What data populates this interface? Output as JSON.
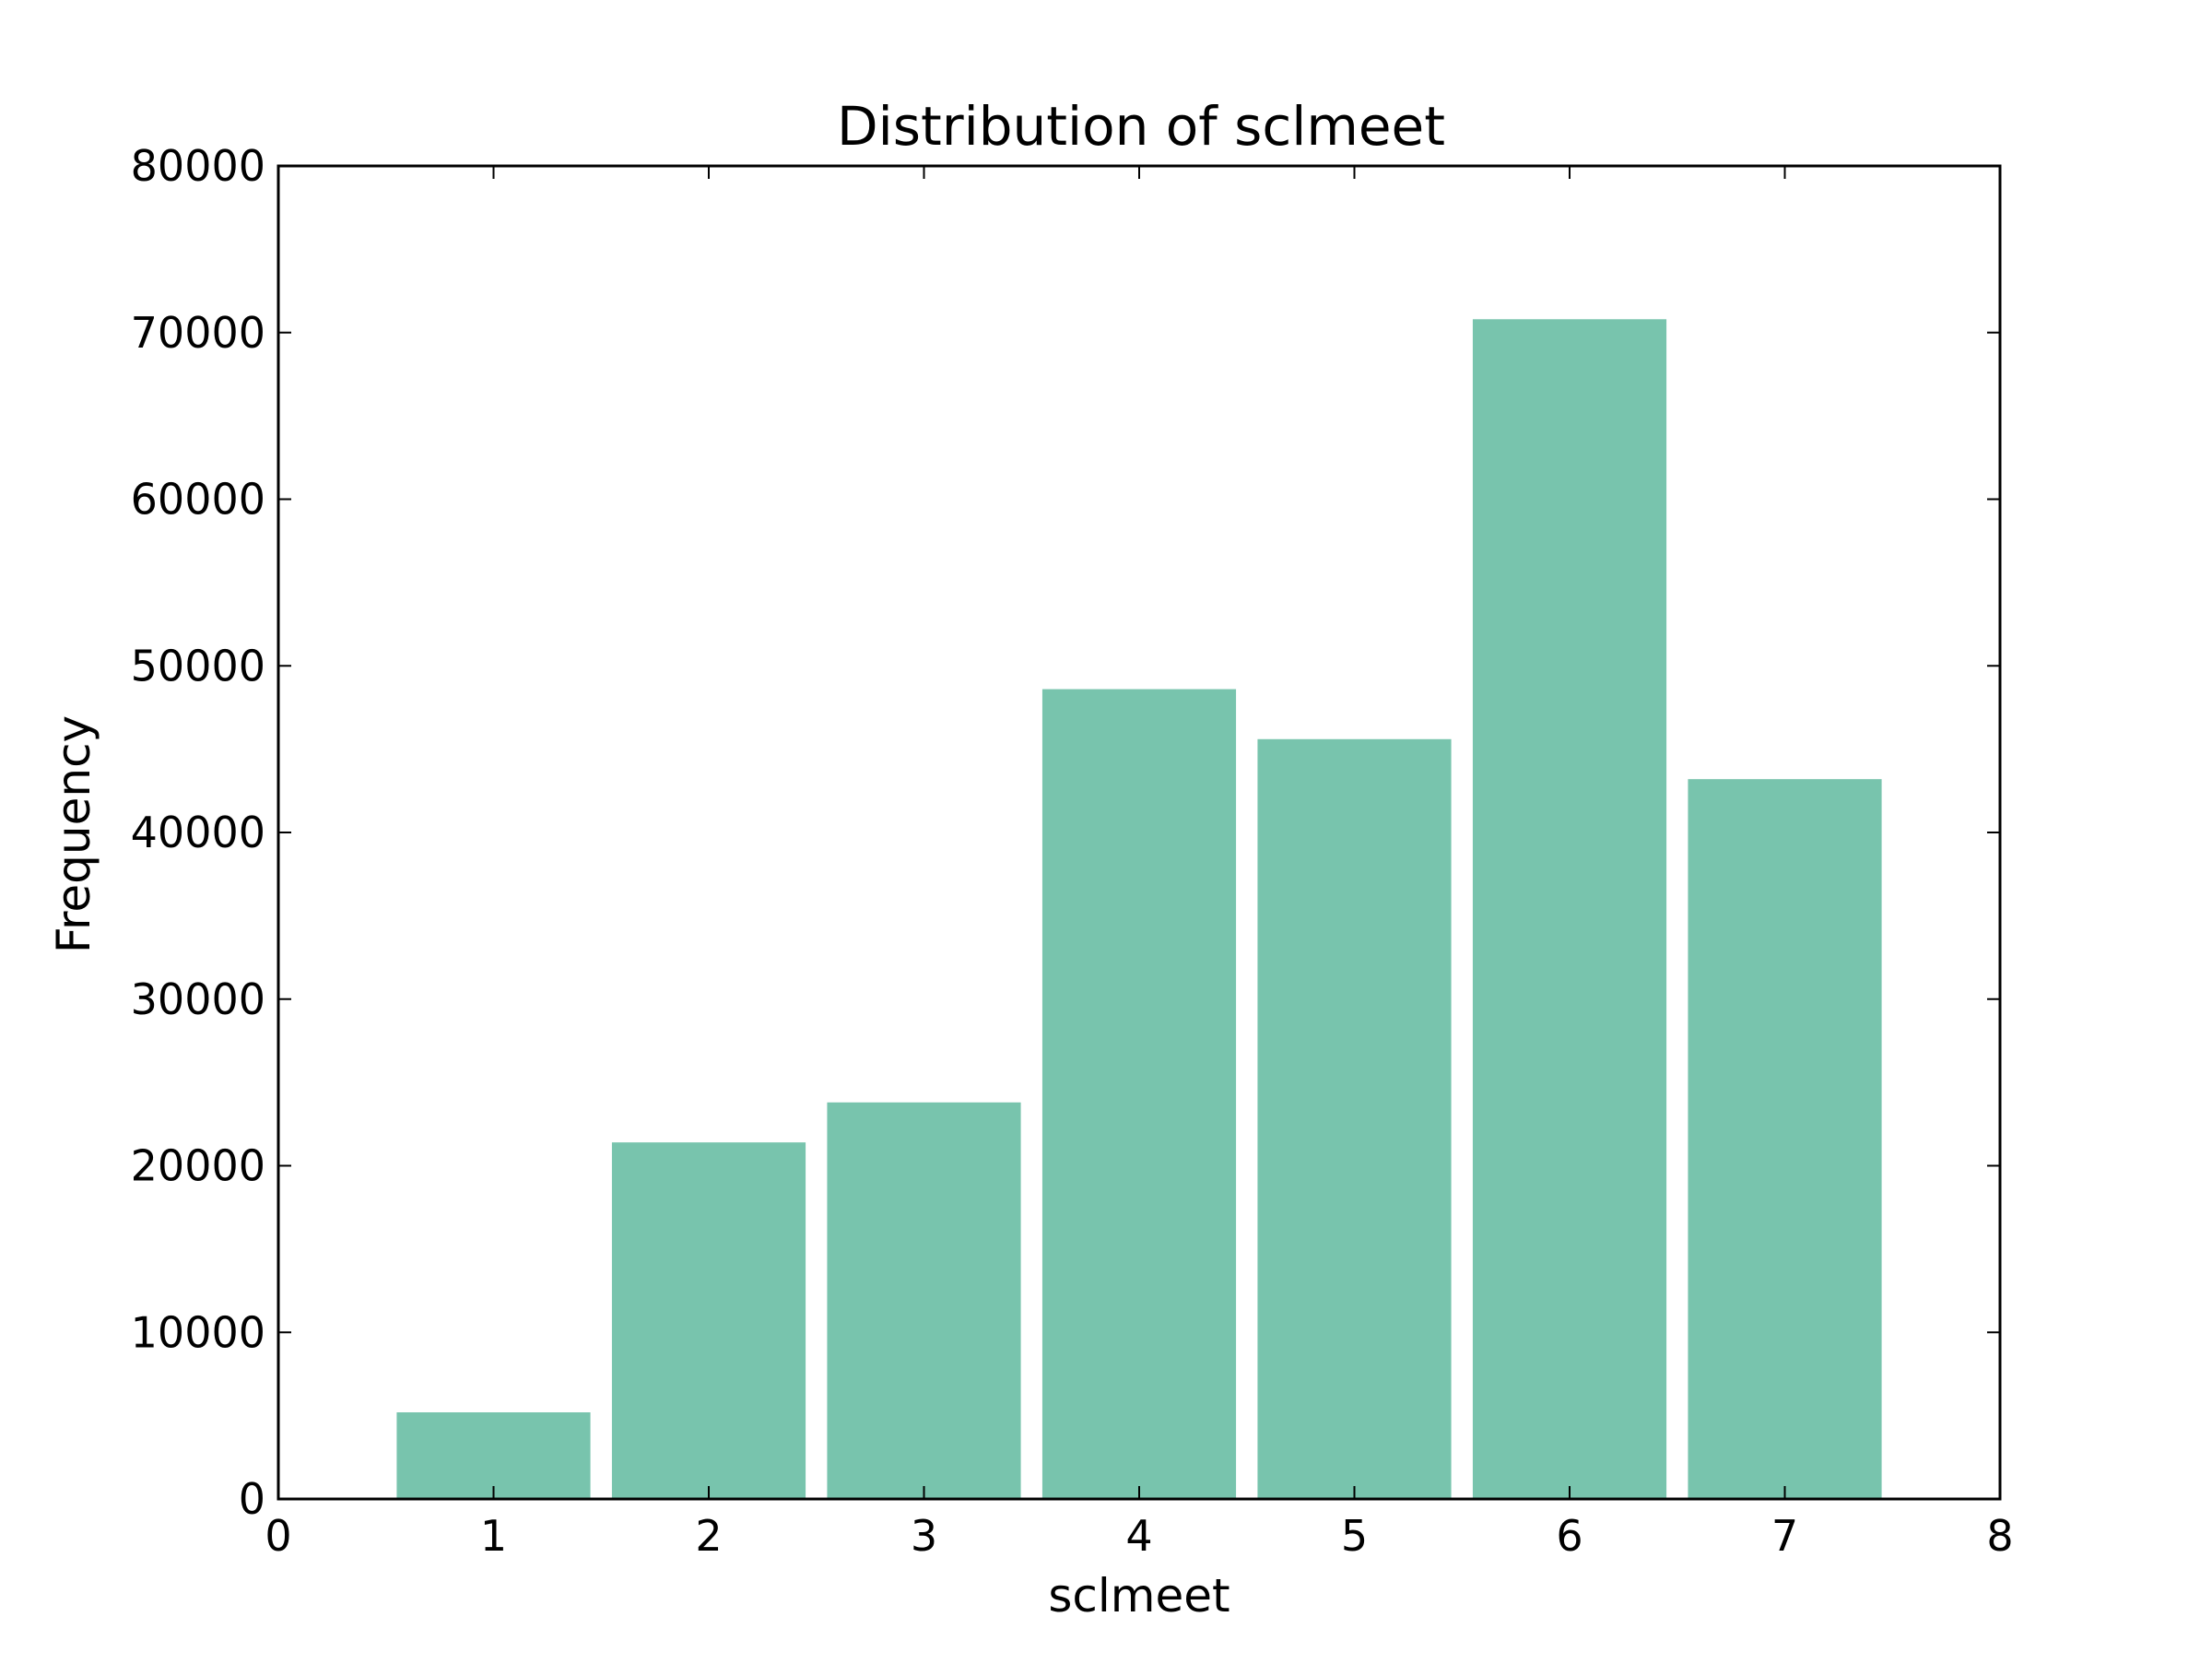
{
  "chart_data": {
    "type": "bar",
    "title": "Distribution of sclmeet",
    "xlabel": "sclmeet",
    "ylabel": "Frequency",
    "x": [
      1,
      2,
      3,
      4,
      5,
      6,
      7
    ],
    "values": [
      5200,
      21400,
      23800,
      48600,
      45600,
      70800,
      43200
    ],
    "bar_width": 0.9,
    "xlim": [
      0,
      8
    ],
    "ylim": [
      0,
      80000
    ],
    "xticks": [
      0,
      1,
      2,
      3,
      4,
      5,
      6,
      7,
      8
    ],
    "yticks": [
      0,
      10000,
      20000,
      30000,
      40000,
      50000,
      60000,
      70000,
      80000
    ],
    "grid": false,
    "bar_color": "#78c4ad"
  }
}
